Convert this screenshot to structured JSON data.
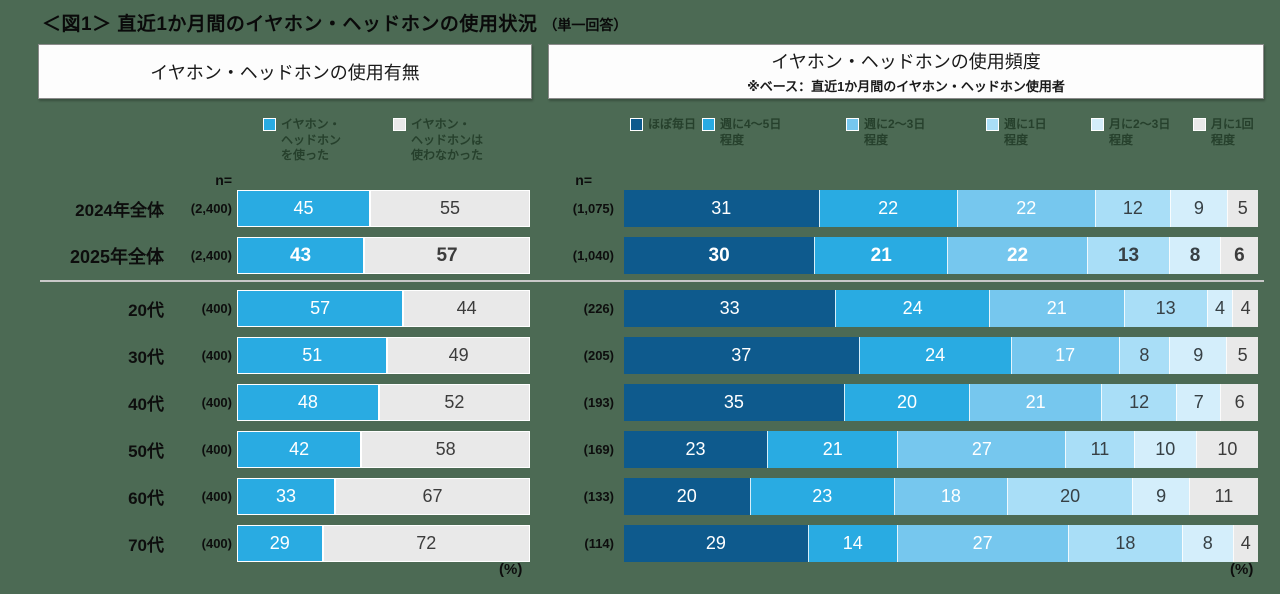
{
  "page": {
    "title": "＜図1＞ 直近1か月間のイヤホン・ヘッドホンの使用状況",
    "title_note": "（単一回答）",
    "n_label": "n=",
    "percent_label": "(%)",
    "background_color": "#4c6a54"
  },
  "panel_left": {
    "header": "イヤホン・ヘッドホンの使用有無"
  },
  "panel_right": {
    "header": "イヤホン・ヘッドホンの使用頻度",
    "subheader": "※ベース：直近1か月間のイヤホン・ヘッドホン使用者"
  },
  "emphasis_category": "2025年全体",
  "chart_data": [
    {
      "type": "bar",
      "orientation": "horizontal",
      "stacked": true,
      "title": "イヤホン・ヘッドホンの使用有無",
      "unit": "%",
      "categories": [
        "2024年全体",
        "2025年全体",
        "20代",
        "30代",
        "40代",
        "50代",
        "60代",
        "70代"
      ],
      "n": [
        "(2,400)",
        "(2,400)",
        "(400)",
        "(400)",
        "(400)",
        "(400)",
        "(400)",
        "(400)"
      ],
      "series": [
        {
          "name": "イヤホン・ヘッドホンを使った",
          "legend_label": "イヤホン・\nヘッドホン\nを使った",
          "color": "#29abe2",
          "text_color": "#ffffff",
          "values": [
            45,
            43,
            57,
            51,
            48,
            42,
            33,
            29
          ]
        },
        {
          "name": "イヤホン・ヘッドホンは使わなかった",
          "legend_label": "イヤホン・\nヘッドホンは\n使わなかった",
          "color": "#e9e9e9",
          "text_color": "#3c3c3c",
          "values": [
            55,
            57,
            44,
            49,
            52,
            58,
            67,
            72
          ]
        }
      ]
    },
    {
      "type": "bar",
      "orientation": "horizontal",
      "stacked": true,
      "title": "イヤホン・ヘッドホンの使用頻度",
      "unit": "%",
      "categories": [
        "2024年全体",
        "2025年全体",
        "20代",
        "30代",
        "40代",
        "50代",
        "60代",
        "70代"
      ],
      "n": [
        "(1,075)",
        "(1,040)",
        "(226)",
        "(205)",
        "(193)",
        "(169)",
        "(133)",
        "(114)"
      ],
      "series": [
        {
          "name": "ほぼ毎日",
          "legend_label": "ほぼ毎日",
          "color": "#0e5a8d",
          "text_color": "#ffffff",
          "values": [
            31,
            30,
            33,
            37,
            35,
            23,
            20,
            29
          ]
        },
        {
          "name": "週に4～5日程度",
          "legend_label": "週に4～5日\n程度",
          "color": "#29abe2",
          "text_color": "#ffffff",
          "values": [
            22,
            21,
            24,
            24,
            20,
            21,
            23,
            14
          ]
        },
        {
          "name": "週に2～3日程度",
          "legend_label": "週に2～3日\n程度",
          "color": "#76c7ee",
          "text_color": "#ffffff",
          "values": [
            22,
            22,
            21,
            17,
            21,
            27,
            18,
            27
          ]
        },
        {
          "name": "週に1日程度",
          "legend_label": "週に1日\n程度",
          "color": "#a9def7",
          "text_color": "#374045",
          "values": [
            12,
            13,
            13,
            8,
            12,
            11,
            20,
            18
          ]
        },
        {
          "name": "月に2～3日程度",
          "legend_label": "月に2～3日\n程度",
          "color": "#d4eefb",
          "text_color": "#374045",
          "values": [
            9,
            8,
            4,
            9,
            7,
            10,
            9,
            8
          ]
        },
        {
          "name": "月に1回程度",
          "legend_label": "月に1回\n程度",
          "color": "#e9e9e9",
          "text_color": "#3c3c3c",
          "values": [
            5,
            6,
            4,
            5,
            6,
            10,
            11,
            4
          ]
        }
      ]
    }
  ]
}
